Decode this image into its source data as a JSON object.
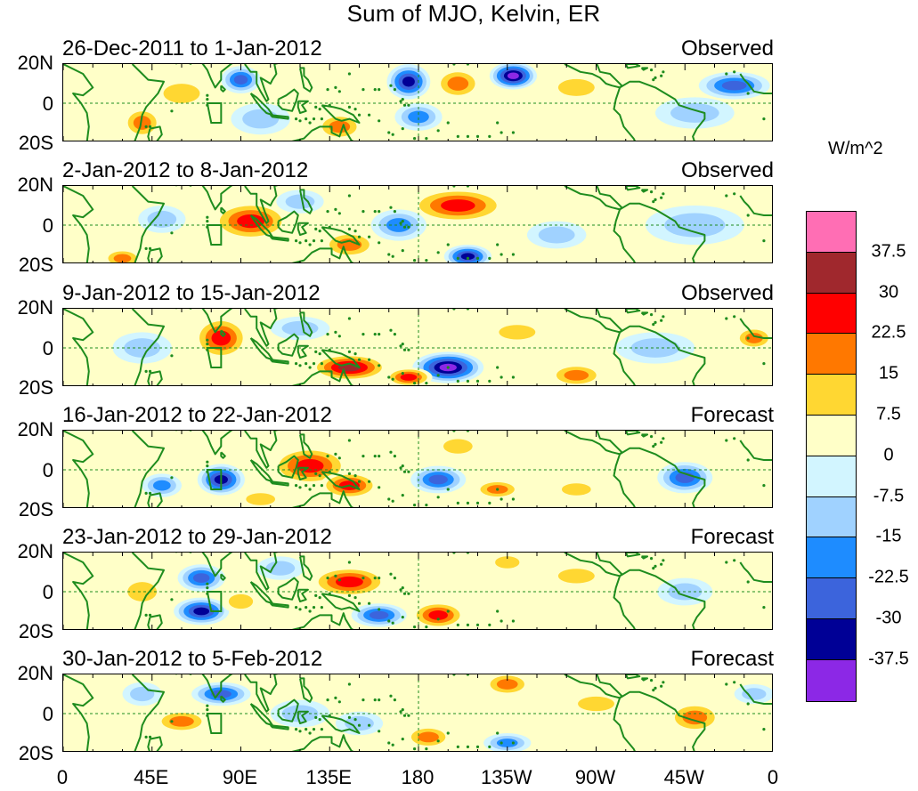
{
  "title": "Sum of MJO, Kelvin, ER",
  "y_labels": [
    "20N",
    "0",
    "20S"
  ],
  "x_labels": [
    "0",
    "45E",
    "90E",
    "135E",
    "180",
    "135W",
    "90W",
    "45W",
    "0"
  ],
  "colorbar": {
    "units": "W/m^2",
    "labels": [
      "37.5",
      "30",
      "22.5",
      "15",
      "7.5",
      "0",
      "-7.5",
      "-15",
      "-22.5",
      "-30",
      "-37.5"
    ],
    "colors": [
      "#ff6eb4",
      "#a0282d",
      "#ff0000",
      "#ff7800",
      "#ffd732",
      "#ffffc8",
      "#d2f5ff",
      "#a0d2ff",
      "#1e8cff",
      "#3c64dc",
      "#000096",
      "#8c28e6"
    ]
  },
  "panels": [
    {
      "date": "26-Dec-2011 to 1-Jan-2012",
      "status": "Observed",
      "blobs": [
        {
          "lon": 175,
          "lat": 11,
          "rx": 11,
          "ry": 9,
          "v": -32
        },
        {
          "lon": 180,
          "lat": -7,
          "rx": 12,
          "ry": 7,
          "v": -22
        },
        {
          "lon": 200,
          "lat": 10,
          "rx": 12,
          "ry": 8,
          "v": 22
        },
        {
          "lon": 228,
          "lat": 14,
          "rx": 12,
          "ry": 7,
          "v": -42
        },
        {
          "lon": 340,
          "lat": 9,
          "rx": 18,
          "ry": 7,
          "v": -26
        },
        {
          "lon": 40,
          "lat": -10,
          "rx": 10,
          "ry": 8,
          "v": 20
        },
        {
          "lon": 140,
          "lat": -12,
          "rx": 12,
          "ry": 7,
          "v": 22
        },
        {
          "lon": 90,
          "lat": 12,
          "rx": 10,
          "ry": 7,
          "v": -25
        },
        {
          "lon": 60,
          "lat": 5,
          "rx": 15,
          "ry": 8,
          "v": 10
        },
        {
          "lon": 320,
          "lat": -5,
          "rx": 20,
          "ry": 8,
          "v": -12
        },
        {
          "lon": 260,
          "lat": 8,
          "rx": 15,
          "ry": 7,
          "v": 8
        },
        {
          "lon": 100,
          "lat": -8,
          "rx": 15,
          "ry": 8,
          "v": -12
        }
      ]
    },
    {
      "date": "2-Jan-2012 to 8-Jan-2012",
      "status": "Observed",
      "blobs": [
        {
          "lon": 95,
          "lat": 2,
          "rx": 20,
          "ry": 10,
          "v": 28
        },
        {
          "lon": 200,
          "lat": 10,
          "rx": 25,
          "ry": 9,
          "v": 26
        },
        {
          "lon": 205,
          "lat": -16,
          "rx": 12,
          "ry": 6,
          "v": -32
        },
        {
          "lon": 145,
          "lat": -10,
          "rx": 14,
          "ry": 7,
          "v": 22
        },
        {
          "lon": 170,
          "lat": 0,
          "rx": 14,
          "ry": 8,
          "v": -18
        },
        {
          "lon": 50,
          "lat": 3,
          "rx": 12,
          "ry": 7,
          "v": -15
        },
        {
          "lon": 30,
          "lat": -17,
          "rx": 10,
          "ry": 5,
          "v": 18
        },
        {
          "lon": 320,
          "lat": 0,
          "rx": 25,
          "ry": 10,
          "v": -10
        },
        {
          "lon": 250,
          "lat": -5,
          "rx": 15,
          "ry": 7,
          "v": -12
        },
        {
          "lon": 120,
          "lat": 12,
          "rx": 12,
          "ry": 6,
          "v": -12
        }
      ]
    },
    {
      "date": "9-Jan-2012 to 15-Jan-2012",
      "status": "Observed",
      "blobs": [
        {
          "lon": 80,
          "lat": 5,
          "rx": 14,
          "ry": 11,
          "v": 30
        },
        {
          "lon": 145,
          "lat": -10,
          "rx": 20,
          "ry": 7,
          "v": 32
        },
        {
          "lon": 195,
          "lat": -10,
          "rx": 18,
          "ry": 8,
          "v": -42
        },
        {
          "lon": 175,
          "lat": -15,
          "rx": 12,
          "ry": 5,
          "v": 26
        },
        {
          "lon": 260,
          "lat": -14,
          "rx": 14,
          "ry": 6,
          "v": 18
        },
        {
          "lon": 350,
          "lat": 5,
          "rx": 10,
          "ry": 6,
          "v": 20
        },
        {
          "lon": 40,
          "lat": 0,
          "rx": 15,
          "ry": 8,
          "v": -12
        },
        {
          "lon": 120,
          "lat": 10,
          "rx": 15,
          "ry": 6,
          "v": -14
        },
        {
          "lon": 300,
          "lat": 0,
          "rx": 20,
          "ry": 8,
          "v": -10
        },
        {
          "lon": 230,
          "lat": 8,
          "rx": 15,
          "ry": 6,
          "v": 8
        }
      ]
    },
    {
      "date": "16-Jan-2012 to 22-Jan-2012",
      "status": "Forecast",
      "blobs": [
        {
          "lon": 125,
          "lat": 2,
          "rx": 20,
          "ry": 10,
          "v": 30
        },
        {
          "lon": 145,
          "lat": -8,
          "rx": 15,
          "ry": 7,
          "v": 24
        },
        {
          "lon": 80,
          "lat": -5,
          "rx": 12,
          "ry": 8,
          "v": -32
        },
        {
          "lon": 190,
          "lat": -5,
          "rx": 14,
          "ry": 7,
          "v": -30
        },
        {
          "lon": 315,
          "lat": -4,
          "rx": 14,
          "ry": 8,
          "v": -28
        },
        {
          "lon": 220,
          "lat": -10,
          "rx": 12,
          "ry": 5,
          "v": 20
        },
        {
          "lon": 50,
          "lat": -8,
          "rx": 10,
          "ry": 6,
          "v": -20
        },
        {
          "lon": 260,
          "lat": -10,
          "rx": 12,
          "ry": 5,
          "v": 10
        },
        {
          "lon": 200,
          "lat": 12,
          "rx": 12,
          "ry": 6,
          "v": 10
        },
        {
          "lon": 100,
          "lat": -15,
          "rx": 12,
          "ry": 5,
          "v": 10
        }
      ]
    },
    {
      "date": "23-Jan-2012 to 29-Jan-2012",
      "status": "Forecast",
      "blobs": [
        {
          "lon": 145,
          "lat": 5,
          "rx": 20,
          "ry": 8,
          "v": 26
        },
        {
          "lon": 190,
          "lat": -12,
          "rx": 14,
          "ry": 7,
          "v": 24
        },
        {
          "lon": 160,
          "lat": -12,
          "rx": 14,
          "ry": 6,
          "v": -28
        },
        {
          "lon": 70,
          "lat": -10,
          "rx": 14,
          "ry": 7,
          "v": -32
        },
        {
          "lon": 70,
          "lat": 7,
          "rx": 12,
          "ry": 7,
          "v": -24
        },
        {
          "lon": 90,
          "lat": -5,
          "rx": 10,
          "ry": 6,
          "v": 12
        },
        {
          "lon": 225,
          "lat": 15,
          "rx": 10,
          "ry": 5,
          "v": 14
        },
        {
          "lon": 315,
          "lat": 0,
          "rx": 14,
          "ry": 7,
          "v": -15
        },
        {
          "lon": 40,
          "lat": 0,
          "rx": 12,
          "ry": 8,
          "v": 10
        },
        {
          "lon": 260,
          "lat": 8,
          "rx": 15,
          "ry": 6,
          "v": 8
        },
        {
          "lon": 110,
          "lat": 12,
          "rx": 12,
          "ry": 6,
          "v": -12
        }
      ]
    },
    {
      "date": "30-Jan-2012 to 5-Feb-2012",
      "status": "Forecast",
      "blobs": [
        {
          "lon": 225,
          "lat": 15,
          "rx": 12,
          "ry": 6,
          "v": 22
        },
        {
          "lon": 320,
          "lat": -2,
          "rx": 14,
          "ry": 8,
          "v": 22
        },
        {
          "lon": 80,
          "lat": 10,
          "rx": 15,
          "ry": 6,
          "v": -25
        },
        {
          "lon": 60,
          "lat": -4,
          "rx": 14,
          "ry": 6,
          "v": 18
        },
        {
          "lon": 185,
          "lat": -12,
          "rx": 12,
          "ry": 6,
          "v": 20
        },
        {
          "lon": 225,
          "lat": -15,
          "rx": 12,
          "ry": 5,
          "v": -22
        },
        {
          "lon": 120,
          "lat": 0,
          "rx": 15,
          "ry": 7,
          "v": -14
        },
        {
          "lon": 150,
          "lat": -5,
          "rx": 12,
          "ry": 6,
          "v": -12
        },
        {
          "lon": 40,
          "lat": 10,
          "rx": 10,
          "ry": 6,
          "v": -10
        },
        {
          "lon": 270,
          "lat": 5,
          "rx": 15,
          "ry": 6,
          "v": 8
        },
        {
          "lon": 350,
          "lat": 10,
          "rx": 10,
          "ry": 5,
          "v": -10
        }
      ]
    }
  ]
}
